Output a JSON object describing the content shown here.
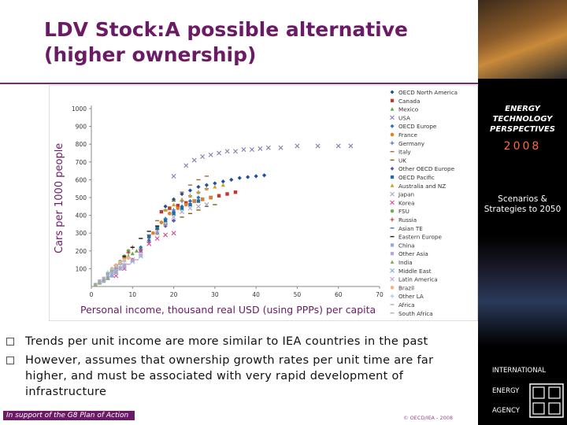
{
  "slide": {
    "title_part1": "LDV Stock:",
    "title_part2": "A possible alternative (higher ownership)",
    "bullets": [
      "Trends per unit income are more similar to IEA countries in the past",
      "However, assumes that ownership growth rates per unit time are far higher, and must be associated with very rapid development of infrastructure"
    ],
    "footer_left": "In support of the G8 Plan of Action",
    "footer_right": "© OECD/IEA - 2008"
  },
  "sidebar": {
    "publication_title": "ENERGY TECHNOLOGY PERSPECTIVES",
    "year": "2008",
    "subtitle": "Scenarios & Strategies to 2050",
    "org_line1": "INTERNATIONAL",
    "org_line2": "ENERGY",
    "org_line3": "AGENCY"
  },
  "chart_data": {
    "type": "scatter",
    "title": "",
    "xlabel": "Personal income, thousand real USD (using PPPs) per capita",
    "ylabel": "Cars per 1000 people",
    "xlim": [
      0,
      70
    ],
    "ylim": [
      0,
      1000
    ],
    "x_ticks": [
      0,
      10,
      20,
      30,
      40,
      50,
      60,
      70
    ],
    "y_ticks": [
      100,
      200,
      300,
      400,
      500,
      600,
      700,
      800,
      900,
      1000
    ],
    "legend_position": "right",
    "series": [
      {
        "name": "OECD North America",
        "color": "#1f4e9a",
        "marker": "diamond",
        "points": [
          [
            18,
            450
          ],
          [
            20,
            490
          ],
          [
            22,
            520
          ],
          [
            24,
            540
          ],
          [
            26,
            560
          ],
          [
            28,
            570
          ],
          [
            30,
            580
          ],
          [
            32,
            590
          ],
          [
            34,
            600
          ],
          [
            36,
            610
          ],
          [
            38,
            615
          ],
          [
            40,
            620
          ],
          [
            42,
            625
          ]
        ]
      },
      {
        "name": "Canada",
        "color": "#c0392b",
        "marker": "square",
        "points": [
          [
            17,
            420
          ],
          [
            19,
            440
          ],
          [
            21,
            455
          ],
          [
            23,
            470
          ],
          [
            25,
            480
          ],
          [
            27,
            490
          ],
          [
            29,
            500
          ],
          [
            31,
            510
          ],
          [
            33,
            520
          ],
          [
            35,
            530
          ]
        ]
      },
      {
        "name": "Mexico",
        "color": "#6aa84f",
        "marker": "triangle",
        "points": [
          [
            5,
            90
          ],
          [
            6,
            110
          ],
          [
            7,
            130
          ],
          [
            8,
            150
          ],
          [
            9,
            170
          ],
          [
            10,
            185
          ],
          [
            11,
            200
          ],
          [
            12,
            215
          ]
        ]
      },
      {
        "name": "USA",
        "color": "#7f7fb0",
        "marker": "x",
        "points": [
          [
            20,
            620
          ],
          [
            23,
            680
          ],
          [
            25,
            710
          ],
          [
            27,
            730
          ],
          [
            29,
            740
          ],
          [
            31,
            750
          ],
          [
            33,
            760
          ],
          [
            35,
            760
          ],
          [
            37,
            770
          ],
          [
            39,
            770
          ],
          [
            41,
            775
          ],
          [
            43,
            780
          ],
          [
            46,
            780
          ],
          [
            50,
            790
          ],
          [
            55,
            790
          ],
          [
            60,
            790
          ],
          [
            63,
            790
          ]
        ]
      },
      {
        "name": "OECD Europe",
        "color": "#2e75b6",
        "marker": "diamond",
        "points": [
          [
            12,
            220
          ],
          [
            14,
            280
          ],
          [
            16,
            330
          ],
          [
            18,
            380
          ],
          [
            20,
            420
          ],
          [
            22,
            450
          ],
          [
            24,
            480
          ],
          [
            26,
            500
          ]
        ]
      },
      {
        "name": "France",
        "color": "#e67e22",
        "marker": "circle",
        "points": [
          [
            15,
            300
          ],
          [
            17,
            360
          ],
          [
            19,
            410
          ],
          [
            21,
            440
          ],
          [
            23,
            460
          ],
          [
            25,
            480
          ],
          [
            27,
            490
          ],
          [
            29,
            500
          ]
        ]
      },
      {
        "name": "Germany",
        "color": "#4a6fb5",
        "marker": "plus",
        "points": [
          [
            14,
            250
          ],
          [
            16,
            320
          ],
          [
            18,
            380
          ],
          [
            20,
            430
          ],
          [
            22,
            480
          ],
          [
            24,
            510
          ],
          [
            26,
            530
          ],
          [
            28,
            550
          ]
        ]
      },
      {
        "name": "Italy",
        "color": "#9e6a3a",
        "marker": "dash",
        "points": [
          [
            14,
            290
          ],
          [
            16,
            370
          ],
          [
            18,
            430
          ],
          [
            20,
            480
          ],
          [
            22,
            530
          ],
          [
            24,
            570
          ],
          [
            26,
            600
          ],
          [
            28,
            620
          ]
        ]
      },
      {
        "name": "UK",
        "color": "#7f6000",
        "marker": "dash",
        "points": [
          [
            16,
            320
          ],
          [
            18,
            350
          ],
          [
            20,
            370
          ],
          [
            22,
            390
          ],
          [
            24,
            410
          ],
          [
            26,
            430
          ],
          [
            28,
            450
          ],
          [
            30,
            460
          ]
        ]
      },
      {
        "name": "Other OECD Europe",
        "color": "#5b5ea6",
        "marker": "diamond",
        "points": [
          [
            10,
            150
          ],
          [
            12,
            200
          ],
          [
            14,
            260
          ],
          [
            16,
            300
          ],
          [
            18,
            340
          ],
          [
            20,
            370
          ]
        ]
      },
      {
        "name": "OECD Pacific",
        "color": "#1c6ea4",
        "marker": "square",
        "points": [
          [
            14,
            280
          ],
          [
            16,
            330
          ],
          [
            18,
            370
          ],
          [
            20,
            410
          ],
          [
            22,
            440
          ],
          [
            24,
            460
          ],
          [
            26,
            480
          ]
        ]
      },
      {
        "name": "Australia and NZ",
        "color": "#c9a227",
        "marker": "triangle",
        "points": [
          [
            18,
            430
          ],
          [
            20,
            460
          ],
          [
            22,
            490
          ],
          [
            24,
            510
          ],
          [
            26,
            530
          ],
          [
            28,
            550
          ],
          [
            30,
            560
          ],
          [
            32,
            570
          ]
        ]
      },
      {
        "name": "Japan",
        "color": "#a6a6c8",
        "marker": "x",
        "points": [
          [
            12,
            180
          ],
          [
            14,
            240
          ],
          [
            16,
            300
          ],
          [
            18,
            350
          ],
          [
            20,
            390
          ],
          [
            22,
            420
          ],
          [
            24,
            440
          ],
          [
            26,
            450
          ],
          [
            28,
            460
          ]
        ]
      },
      {
        "name": "Korea",
        "color": "#d94a8c",
        "marker": "x",
        "points": [
          [
            6,
            60
          ],
          [
            8,
            100
          ],
          [
            10,
            150
          ],
          [
            12,
            200
          ],
          [
            14,
            240
          ],
          [
            16,
            270
          ],
          [
            18,
            290
          ],
          [
            20,
            300
          ]
        ]
      },
      {
        "name": "FSU",
        "color": "#70ad47",
        "marker": "circle",
        "points": [
          [
            4,
            70
          ],
          [
            5,
            90
          ],
          [
            6,
            110
          ],
          [
            7,
            140
          ],
          [
            8,
            170
          ],
          [
            9,
            200
          ]
        ]
      },
      {
        "name": "Russia",
        "color": "#c0392b",
        "marker": "plus",
        "points": [
          [
            5,
            80
          ],
          [
            6,
            100
          ],
          [
            7,
            130
          ],
          [
            8,
            160
          ],
          [
            9,
            190
          ],
          [
            10,
            220
          ]
        ]
      },
      {
        "name": "Asian TE",
        "color": "#4472c4",
        "marker": "dash",
        "points": [
          [
            2,
            20
          ],
          [
            3,
            30
          ],
          [
            4,
            40
          ],
          [
            5,
            55
          ]
        ]
      },
      {
        "name": "Eastern Europe",
        "color": "#1a1a1a",
        "marker": "dash",
        "points": [
          [
            6,
            120
          ],
          [
            8,
            170
          ],
          [
            10,
            220
          ],
          [
            12,
            270
          ],
          [
            14,
            310
          ],
          [
            16,
            340
          ]
        ]
      },
      {
        "name": "China",
        "color": "#8faadc",
        "marker": "square",
        "points": [
          [
            1,
            10
          ],
          [
            2,
            20
          ],
          [
            3,
            30
          ],
          [
            4,
            45
          ],
          [
            5,
            60
          ],
          [
            6,
            80
          ],
          [
            7,
            100
          ]
        ]
      },
      {
        "name": "Other Asia",
        "color": "#b4a7d6",
        "marker": "square",
        "points": [
          [
            2,
            30
          ],
          [
            3,
            45
          ],
          [
            4,
            60
          ],
          [
            5,
            75
          ],
          [
            6,
            90
          ],
          [
            7,
            105
          ],
          [
            8,
            120
          ]
        ]
      },
      {
        "name": "India",
        "color": "#8eaa5a",
        "marker": "triangle",
        "points": [
          [
            1,
            10
          ],
          [
            2,
            20
          ],
          [
            3,
            35
          ],
          [
            4,
            50
          ]
        ]
      },
      {
        "name": "Middle East",
        "color": "#7fb0d8",
        "marker": "x",
        "points": [
          [
            6,
            80
          ],
          [
            8,
            110
          ],
          [
            10,
            140
          ],
          [
            12,
            170
          ]
        ]
      },
      {
        "name": "Latin America",
        "color": "#c9a0c8",
        "marker": "x",
        "points": [
          [
            6,
            90
          ],
          [
            8,
            120
          ],
          [
            10,
            150
          ],
          [
            12,
            180
          ]
        ]
      },
      {
        "name": "Brazil",
        "color": "#f4b183",
        "marker": "circle",
        "points": [
          [
            5,
            100
          ],
          [
            6,
            120
          ],
          [
            7,
            135
          ],
          [
            8,
            150
          ],
          [
            9,
            160
          ]
        ]
      },
      {
        "name": "Other LA",
        "color": "#9dc3e6",
        "marker": "plus",
        "points": [
          [
            4,
            80
          ],
          [
            5,
            95
          ],
          [
            6,
            110
          ],
          [
            7,
            125
          ],
          [
            8,
            140
          ]
        ]
      },
      {
        "name": "Africa",
        "color": "#b0b0b0",
        "marker": "dash",
        "points": [
          [
            1,
            10
          ],
          [
            2,
            20
          ],
          [
            3,
            30
          ]
        ]
      },
      {
        "name": "South Africa",
        "color": "#c5a3c8",
        "marker": "dash",
        "points": [
          [
            8,
            110
          ],
          [
            9,
            125
          ],
          [
            10,
            140
          ],
          [
            11,
            150
          ]
        ]
      }
    ]
  }
}
